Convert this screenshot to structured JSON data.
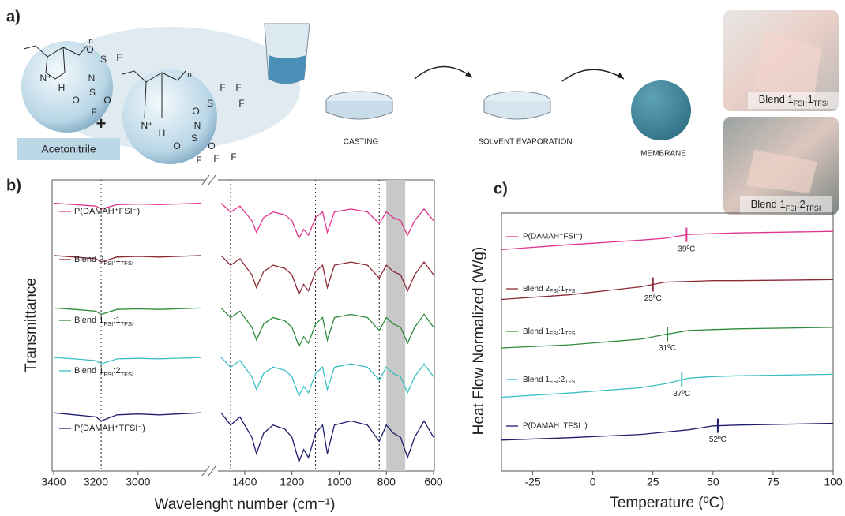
{
  "panel_a": {
    "label": "a)",
    "solvent": "Acetonitrile",
    "plus": "+",
    "structure_1": [
      "n",
      "N⁺",
      "H",
      "O",
      "S",
      "F",
      "N",
      "S",
      "O",
      "O",
      "F"
    ],
    "structure_2": [
      "n",
      "N⁺",
      "H",
      "O",
      "S",
      "F",
      "F",
      "F",
      "N",
      "S",
      "O",
      "O",
      "F",
      "F",
      "F"
    ],
    "steps": [
      "CASTING",
      "SOLVENT EVAPORATION",
      "MEMBRANE"
    ],
    "photos": [
      "Blend 1FSI:1TFSI",
      "Blend 1FSI:2TFSI"
    ]
  },
  "chart_data": [
    {
      "type": "line",
      "panel": "b)",
      "ylabel": "Transmittance",
      "xlabel": "Wavelenght number (cm⁻¹)",
      "xlim": [
        3400,
        600
      ],
      "x_break": [
        2700,
        1500
      ],
      "ylim": [
        0,
        100
      ],
      "xticks": [
        3400,
        3200,
        3000,
        1400,
        1200,
        1000,
        800,
        600
      ],
      "reference_lines": [
        3175,
        1460,
        1100,
        830
      ],
      "shaded_band": [
        800,
        720
      ],
      "x": [
        3400,
        3300,
        3200,
        3175,
        3100,
        3000,
        2900,
        2700,
        1500,
        1460,
        1420,
        1370,
        1350,
        1320,
        1280,
        1230,
        1200,
        1170,
        1150,
        1130,
        1100,
        1070,
        1050,
        1020,
        950,
        880,
        830,
        800,
        770,
        740,
        710,
        680,
        640,
        600
      ],
      "series": [
        {
          "name": "P(DAMAH⁺FSI⁻)",
          "color": "#e0338f",
          "values": [
            92,
            91.5,
            91,
            90,
            91.5,
            91.7,
            91.5,
            92,
            92,
            89,
            91,
            86,
            82,
            87,
            89,
            88,
            86,
            80,
            83,
            81,
            87,
            89,
            82,
            89,
            90,
            89,
            85,
            89,
            87,
            86,
            81,
            86,
            90,
            86
          ]
        },
        {
          "name": "Blend 2FSI:1TFSI",
          "color": "#8b2a35",
          "values": [
            74,
            73.5,
            72.9,
            71.8,
            73.5,
            73.7,
            73.5,
            74,
            74,
            70.7,
            72.9,
            67.4,
            63,
            68.5,
            70.7,
            69.6,
            67.4,
            60.8,
            64.1,
            61.9,
            68.5,
            70.7,
            63,
            70.7,
            71.8,
            70.7,
            66.3,
            70.7,
            68.5,
            67.4,
            61.9,
            67.4,
            71.8,
            67.4
          ]
        },
        {
          "name": "Blend 1FSI:1TFSI",
          "color": "#2e8b3a",
          "values": [
            56,
            55.5,
            54.9,
            53.8,
            55.5,
            55.7,
            55.5,
            56,
            56,
            52.7,
            54.9,
            49.4,
            45,
            50.5,
            52.7,
            51.6,
            49.4,
            42.8,
            46.1,
            43.9,
            50.5,
            52.7,
            45,
            52.7,
            53.8,
            52.7,
            48.3,
            52.7,
            50.5,
            49.4,
            43.9,
            49.4,
            53.8,
            49.4
          ]
        },
        {
          "name": "Blend 1FSI:2TFSI",
          "color": "#3bbfc4",
          "values": [
            39,
            38.5,
            37.9,
            36.8,
            38.5,
            38.7,
            38.5,
            39,
            39,
            35.7,
            37.9,
            32.4,
            28,
            33.5,
            35.7,
            34.6,
            32.4,
            25.8,
            29.1,
            26.9,
            33.5,
            35.7,
            28,
            35.7,
            36.8,
            35.7,
            31.3,
            35.7,
            33.5,
            32.4,
            26.9,
            32.4,
            36.8,
            32.4
          ]
        },
        {
          "name": "P(DAMAH⁺TFSI⁻)",
          "color": "#1e1e6e",
          "values": [
            20,
            19.3,
            18.6,
            17.2,
            19.3,
            19.6,
            19.3,
            20,
            20,
            15.8,
            18.6,
            11.6,
            6,
            13,
            15.8,
            14.4,
            11.6,
            3.2,
            7.4,
            4.6,
            13,
            15.8,
            6,
            15.8,
            17.2,
            15.8,
            10.2,
            15.8,
            13,
            11.6,
            4.6,
            11.6,
            17.2,
            11.6
          ]
        }
      ]
    },
    {
      "type": "line",
      "panel": "c)",
      "ylabel": "Heat Flow Normalized (W/g)",
      "xlabel": "Temperature (ºC)",
      "xlim": [
        -38,
        100
      ],
      "ylim": [
        0,
        100
      ],
      "xticks": [
        -25,
        0,
        25,
        50,
        75,
        100
      ],
      "x": [
        -38,
        -10,
        20,
        30,
        40,
        50,
        60,
        100
      ],
      "series": [
        {
          "name": "P(DAMAH⁺FSI⁻)",
          "color": "#e0338f",
          "values": [
            85.8,
            87.7,
            89.5,
            90.2,
            91.7,
            92,
            92.3,
            92.9
          ],
          "tg": 39,
          "tg_label": "39ºC"
        },
        {
          "name": "Blend 2FSI:1TFSI",
          "color": "#8b2a35",
          "values": [
            66.5,
            68.3,
            71.4,
            73.2,
            73.5,
            73.8,
            73.8,
            74.2
          ],
          "tg": 25,
          "tg_label": "25ºC"
        },
        {
          "name": "Blend 1FSI:1TFSI",
          "color": "#2e8b3a",
          "values": [
            47.7,
            48.9,
            51.1,
            52.9,
            54.5,
            54.8,
            55.1,
            55.7
          ],
          "tg": 31,
          "tg_label": "31ºC"
        },
        {
          "name": "Blend 1FSI:2TFSI",
          "color": "#3bbfc4",
          "values": [
            28.6,
            30.2,
            32.3,
            33.8,
            36,
            36.6,
            36.9,
            37.5
          ],
          "tg": 37,
          "tg_label": "37ºC"
        },
        {
          "name": "P(DAMAH⁺TFSI⁻)",
          "color": "#1e1e6e",
          "values": [
            12,
            12.9,
            14.2,
            15.1,
            16,
            17.5,
            17.8,
            18.5
          ],
          "tg": 52,
          "tg_label": "52ºC"
        }
      ]
    }
  ]
}
